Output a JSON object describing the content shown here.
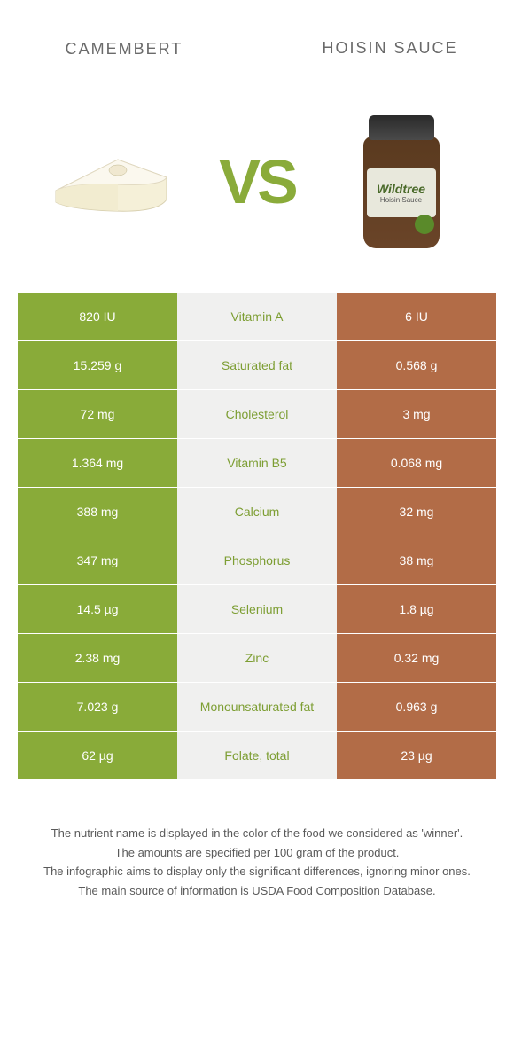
{
  "header": {
    "left_title": "CAMEMBERT",
    "right_title": "HOISIN SAUCE",
    "vs_text": "VS"
  },
  "left_image": {
    "semantic": "camembert-cheese-wedge"
  },
  "right_image": {
    "semantic": "hoisin-sauce-jar",
    "brand": "Wildtree",
    "sub": "Hoisin Sauce"
  },
  "colors": {
    "left_bg": "#89ab39",
    "right_bg": "#b26c47",
    "mid_bg": "#f0f0ef",
    "left_text": "#7d9e33",
    "right_text": "#8a5a3a",
    "vs_color": "#8aab3a"
  },
  "table": {
    "rows": [
      {
        "left": "820 IU",
        "label": "Vitamin A",
        "right": "6 IU",
        "winner": "left"
      },
      {
        "left": "15.259 g",
        "label": "Saturated fat",
        "right": "0.568 g",
        "winner": "left"
      },
      {
        "left": "72 mg",
        "label": "Cholesterol",
        "right": "3 mg",
        "winner": "left"
      },
      {
        "left": "1.364 mg",
        "label": "Vitamin B5",
        "right": "0.068 mg",
        "winner": "left"
      },
      {
        "left": "388 mg",
        "label": "Calcium",
        "right": "32 mg",
        "winner": "left"
      },
      {
        "left": "347 mg",
        "label": "Phosphorus",
        "right": "38 mg",
        "winner": "left"
      },
      {
        "left": "14.5 µg",
        "label": "Selenium",
        "right": "1.8 µg",
        "winner": "left"
      },
      {
        "left": "2.38 mg",
        "label": "Zinc",
        "right": "0.32 mg",
        "winner": "left"
      },
      {
        "left": "7.023 g",
        "label": "Monounsaturated fat",
        "right": "0.963 g",
        "winner": "left"
      },
      {
        "left": "62 µg",
        "label": "Folate, total",
        "right": "23 µg",
        "winner": "left"
      }
    ]
  },
  "notes": {
    "line1": "The nutrient name is displayed in the color of the food we considered as 'winner'.",
    "line2": "The amounts are specified per 100 gram of the product.",
    "line3": "The infographic aims to display only the significant differences, ignoring minor ones.",
    "line4": "The main source of information is USDA Food Composition Database."
  }
}
